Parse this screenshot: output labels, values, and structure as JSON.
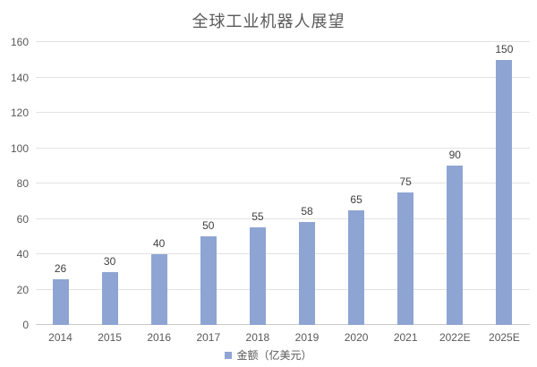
{
  "chart_data": {
    "type": "bar",
    "title": "全球工业机器人展望",
    "categories": [
      "2014",
      "2015",
      "2016",
      "2017",
      "2018",
      "2019",
      "2020",
      "2021",
      "2022E",
      "2025E"
    ],
    "values": [
      26,
      30,
      40,
      50,
      55,
      58,
      65,
      75,
      90,
      150
    ],
    "series_name": "金额（亿美元）",
    "legend_label": "金额（亿美元）",
    "xlabel": "",
    "ylabel": "",
    "ylim": [
      0,
      160
    ],
    "ytick_step": 20,
    "ytick_labels": [
      "0",
      "20",
      "40",
      "60",
      "80",
      "100",
      "120",
      "140",
      "160"
    ],
    "grid": true,
    "legend_position": "bottom",
    "bar_color": "#8EA5D3",
    "gridline_color": "#e2e2e2",
    "title_color": "#595959",
    "axis_text_color": "#595959",
    "data_label_color": "#3f3f3f"
  }
}
